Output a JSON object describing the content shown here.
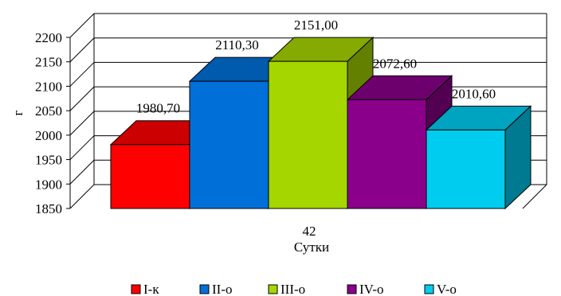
{
  "chart_data": {
    "type": "bar",
    "style": "3d-clustered-column",
    "categories": [
      "42"
    ],
    "xlabel": "Сутки",
    "ylabel": "г",
    "ylim": [
      1850,
      2200
    ],
    "yticks": [
      1850,
      1900,
      1950,
      2000,
      2050,
      2100,
      2150,
      2200
    ],
    "ytick_labels": [
      "1850",
      "1900",
      "1950",
      "2000",
      "2050",
      "2100",
      "2150",
      "2200"
    ],
    "grid": true,
    "legend_position": "bottom",
    "series": [
      {
        "name": "I-к",
        "values": [
          1980.7
        ],
        "label": "1980,70",
        "color": "#ff0000"
      },
      {
        "name": "II-о",
        "values": [
          2110.3
        ],
        "label": "2110,30",
        "color": "#0070d8"
      },
      {
        "name": "III-о",
        "values": [
          2151.0
        ],
        "label": "2151,00",
        "color": "#a6d600"
      },
      {
        "name": "IV-о",
        "values": [
          2072.6
        ],
        "label": "2072,60",
        "color": "#8a008a"
      },
      {
        "name": "V-о",
        "values": [
          2010.6
        ],
        "label": "2010,60",
        "color": "#00ccf0"
      }
    ]
  }
}
